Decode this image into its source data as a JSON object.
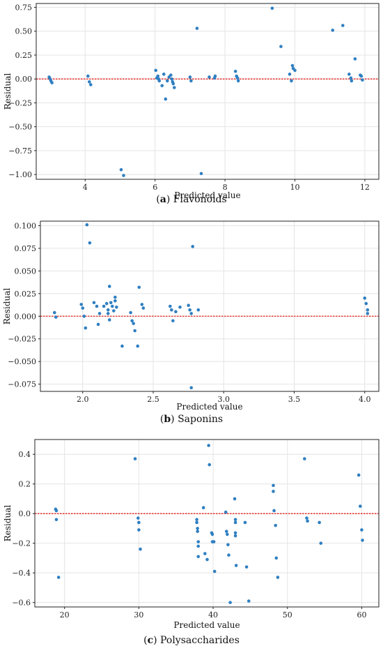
{
  "chart_data": [
    {
      "type": "scatter",
      "caption_letter": "(a)",
      "caption_text": "Flavonoids",
      "xlabel": "Predicted value",
      "ylabel": "Residual",
      "xlim": [
        2.6,
        12.4
      ],
      "ylim": [
        -1.05,
        0.79
      ],
      "xticks": [
        4,
        6,
        8,
        10,
        12
      ],
      "yticks": [
        -1.0,
        -0.75,
        -0.5,
        -0.25,
        0.0,
        0.25,
        0.5,
        0.75
      ],
      "ytick_labels": [
        "−1.00",
        "−0.75",
        "−0.50",
        "−0.25",
        "0.00",
        "0.25",
        "0.50",
        "0.75"
      ],
      "grid": true,
      "reference_line": 0,
      "points": [
        [
          2.97,
          0.02
        ],
        [
          3.0,
          0.0
        ],
        [
          3.02,
          -0.02
        ],
        [
          3.05,
          -0.04
        ],
        [
          4.08,
          0.03
        ],
        [
          4.12,
          -0.03
        ],
        [
          4.16,
          -0.06
        ],
        [
          5.03,
          -0.95
        ],
        [
          5.1,
          -1.01
        ],
        [
          6.02,
          0.09
        ],
        [
          6.05,
          0.01
        ],
        [
          6.08,
          0.03
        ],
        [
          6.1,
          0.0
        ],
        [
          6.12,
          -0.02
        ],
        [
          6.2,
          -0.07
        ],
        [
          6.25,
          0.05
        ],
        [
          6.3,
          -0.21
        ],
        [
          6.35,
          -0.02
        ],
        [
          6.4,
          0.02
        ],
        [
          6.45,
          0.04
        ],
        [
          6.48,
          0.0
        ],
        [
          6.5,
          -0.03
        ],
        [
          6.52,
          -0.05
        ],
        [
          6.55,
          -0.09
        ],
        [
          7.0,
          0.02
        ],
        [
          7.03,
          -0.02
        ],
        [
          7.2,
          0.53
        ],
        [
          7.32,
          -0.99
        ],
        [
          7.55,
          0.02
        ],
        [
          7.7,
          0.01
        ],
        [
          7.72,
          0.03
        ],
        [
          8.3,
          0.08
        ],
        [
          8.33,
          0.03
        ],
        [
          8.36,
          0.01
        ],
        [
          8.38,
          -0.02
        ],
        [
          9.35,
          0.74
        ],
        [
          9.6,
          0.34
        ],
        [
          9.85,
          0.05
        ],
        [
          9.9,
          -0.02
        ],
        [
          9.93,
          0.14
        ],
        [
          9.95,
          0.11
        ],
        [
          10.0,
          0.09
        ],
        [
          11.08,
          0.51
        ],
        [
          11.37,
          0.56
        ],
        [
          11.55,
          0.05
        ],
        [
          11.6,
          0.01
        ],
        [
          11.62,
          -0.02
        ],
        [
          11.72,
          0.21
        ],
        [
          11.87,
          0.04
        ],
        [
          11.9,
          0.03
        ],
        [
          11.93,
          -0.01
        ]
      ]
    },
    {
      "type": "scatter",
      "caption_letter": "(b)",
      "caption_text": "Saponins",
      "xlabel": "Predicted value",
      "ylabel": "Residual",
      "xlim": [
        1.7,
        4.1
      ],
      "ylim": [
        -0.083,
        0.105
      ],
      "xticks": [
        2.0,
        2.5,
        3.0,
        3.5,
        4.0
      ],
      "yticks": [
        -0.075,
        -0.05,
        -0.025,
        0.0,
        0.025,
        0.05,
        0.075,
        0.1
      ],
      "ytick_labels": [
        "−0.075",
        "−0.050",
        "−0.025",
        "0.000",
        "0.025",
        "0.050",
        "0.075",
        "0.100"
      ],
      "grid": true,
      "reference_line": 0,
      "points": [
        [
          1.8,
          0.004
        ],
        [
          1.81,
          -0.001
        ],
        [
          1.99,
          0.013
        ],
        [
          2.0,
          0.009
        ],
        [
          2.01,
          0.0
        ],
        [
          2.02,
          -0.013
        ],
        [
          2.03,
          0.101
        ],
        [
          2.05,
          0.081
        ],
        [
          2.08,
          0.015
        ],
        [
          2.1,
          0.011
        ],
        [
          2.11,
          -0.009
        ],
        [
          2.12,
          0.003
        ],
        [
          2.15,
          0.011
        ],
        [
          2.17,
          0.014
        ],
        [
          2.18,
          0.007
        ],
        [
          2.18,
          0.003
        ],
        [
          2.19,
          0.033
        ],
        [
          2.19,
          -0.004
        ],
        [
          2.2,
          0.015
        ],
        [
          2.21,
          0.011
        ],
        [
          2.22,
          0.006
        ],
        [
          2.23,
          0.021
        ],
        [
          2.23,
          0.017
        ],
        [
          2.24,
          0.01
        ],
        [
          2.28,
          -0.033
        ],
        [
          2.34,
          0.004
        ],
        [
          2.35,
          -0.005
        ],
        [
          2.36,
          -0.008
        ],
        [
          2.37,
          -0.016
        ],
        [
          2.39,
          -0.033
        ],
        [
          2.4,
          0.032
        ],
        [
          2.42,
          0.013
        ],
        [
          2.43,
          0.009
        ],
        [
          2.62,
          0.011
        ],
        [
          2.63,
          0.007
        ],
        [
          2.64,
          -0.005
        ],
        [
          2.66,
          0.005
        ],
        [
          2.69,
          0.01
        ],
        [
          2.75,
          0.012
        ],
        [
          2.76,
          0.007
        ],
        [
          2.77,
          0.003
        ],
        [
          2.77,
          -0.079
        ],
        [
          2.78,
          0.077
        ],
        [
          2.82,
          0.007
        ],
        [
          4.0,
          0.02
        ],
        [
          4.01,
          0.014
        ],
        [
          4.02,
          0.007
        ],
        [
          4.02,
          0.003
        ]
      ]
    },
    {
      "type": "scatter",
      "caption_letter": "(c)",
      "caption_text": "Polysaccharides",
      "xlabel": "Predicted value",
      "ylabel": "Residual",
      "xlim": [
        16.0,
        62.3
      ],
      "ylim": [
        -0.63,
        0.5
      ],
      "xticks": [
        20,
        30,
        40,
        50,
        60
      ],
      "yticks": [
        -0.6,
        -0.4,
        -0.2,
        0.0,
        0.2,
        0.4
      ],
      "ytick_labels": [
        "−0.6",
        "−0.4",
        "−0.2",
        "0.0",
        "0.2",
        "0.4"
      ],
      "grid": true,
      "reference_line": 0,
      "points": [
        [
          18.8,
          0.03
        ],
        [
          18.9,
          0.02
        ],
        [
          18.9,
          -0.04
        ],
        [
          19.2,
          -0.43
        ],
        [
          29.5,
          0.37
        ],
        [
          29.9,
          -0.03
        ],
        [
          30.0,
          -0.06
        ],
        [
          30.0,
          -0.11
        ],
        [
          30.2,
          -0.24
        ],
        [
          37.8,
          -0.04
        ],
        [
          37.8,
          -0.06
        ],
        [
          37.9,
          -0.1
        ],
        [
          37.9,
          -0.12
        ],
        [
          38.0,
          -0.19
        ],
        [
          38.0,
          -0.22
        ],
        [
          38.0,
          -0.29
        ],
        [
          38.7,
          0.04
        ],
        [
          38.9,
          -0.27
        ],
        [
          39.2,
          -0.31
        ],
        [
          39.4,
          0.46
        ],
        [
          39.5,
          0.33
        ],
        [
          39.8,
          -0.13
        ],
        [
          39.9,
          -0.14
        ],
        [
          39.9,
          -0.19
        ],
        [
          40.1,
          -0.19
        ],
        [
          40.2,
          -0.39
        ],
        [
          41.7,
          0.01
        ],
        [
          41.8,
          -0.12
        ],
        [
          41.9,
          -0.14
        ],
        [
          42.0,
          -0.21
        ],
        [
          42.1,
          -0.28
        ],
        [
          42.3,
          -0.6
        ],
        [
          42.9,
          0.1
        ],
        [
          43.0,
          -0.04
        ],
        [
          43.0,
          -0.06
        ],
        [
          43.0,
          -0.13
        ],
        [
          43.0,
          -0.15
        ],
        [
          43.1,
          -0.35
        ],
        [
          44.3,
          -0.06
        ],
        [
          44.5,
          -0.36
        ],
        [
          44.8,
          -0.59
        ],
        [
          48.1,
          0.19
        ],
        [
          48.1,
          0.15
        ],
        [
          48.2,
          0.02
        ],
        [
          48.4,
          -0.08
        ],
        [
          48.5,
          -0.3
        ],
        [
          48.7,
          -0.43
        ],
        [
          52.3,
          0.37
        ],
        [
          52.6,
          -0.03
        ],
        [
          52.7,
          -0.05
        ],
        [
          54.3,
          -0.06
        ],
        [
          54.5,
          -0.2
        ],
        [
          59.6,
          0.26
        ],
        [
          59.8,
          0.05
        ],
        [
          60.0,
          -0.11
        ],
        [
          60.1,
          -0.18
        ]
      ]
    }
  ],
  "style": {
    "point_color": "#2f7fc1",
    "reference_line_color": "#e0201c",
    "grid_color": "#e4e4e4",
    "axis_color": "#222222"
  }
}
